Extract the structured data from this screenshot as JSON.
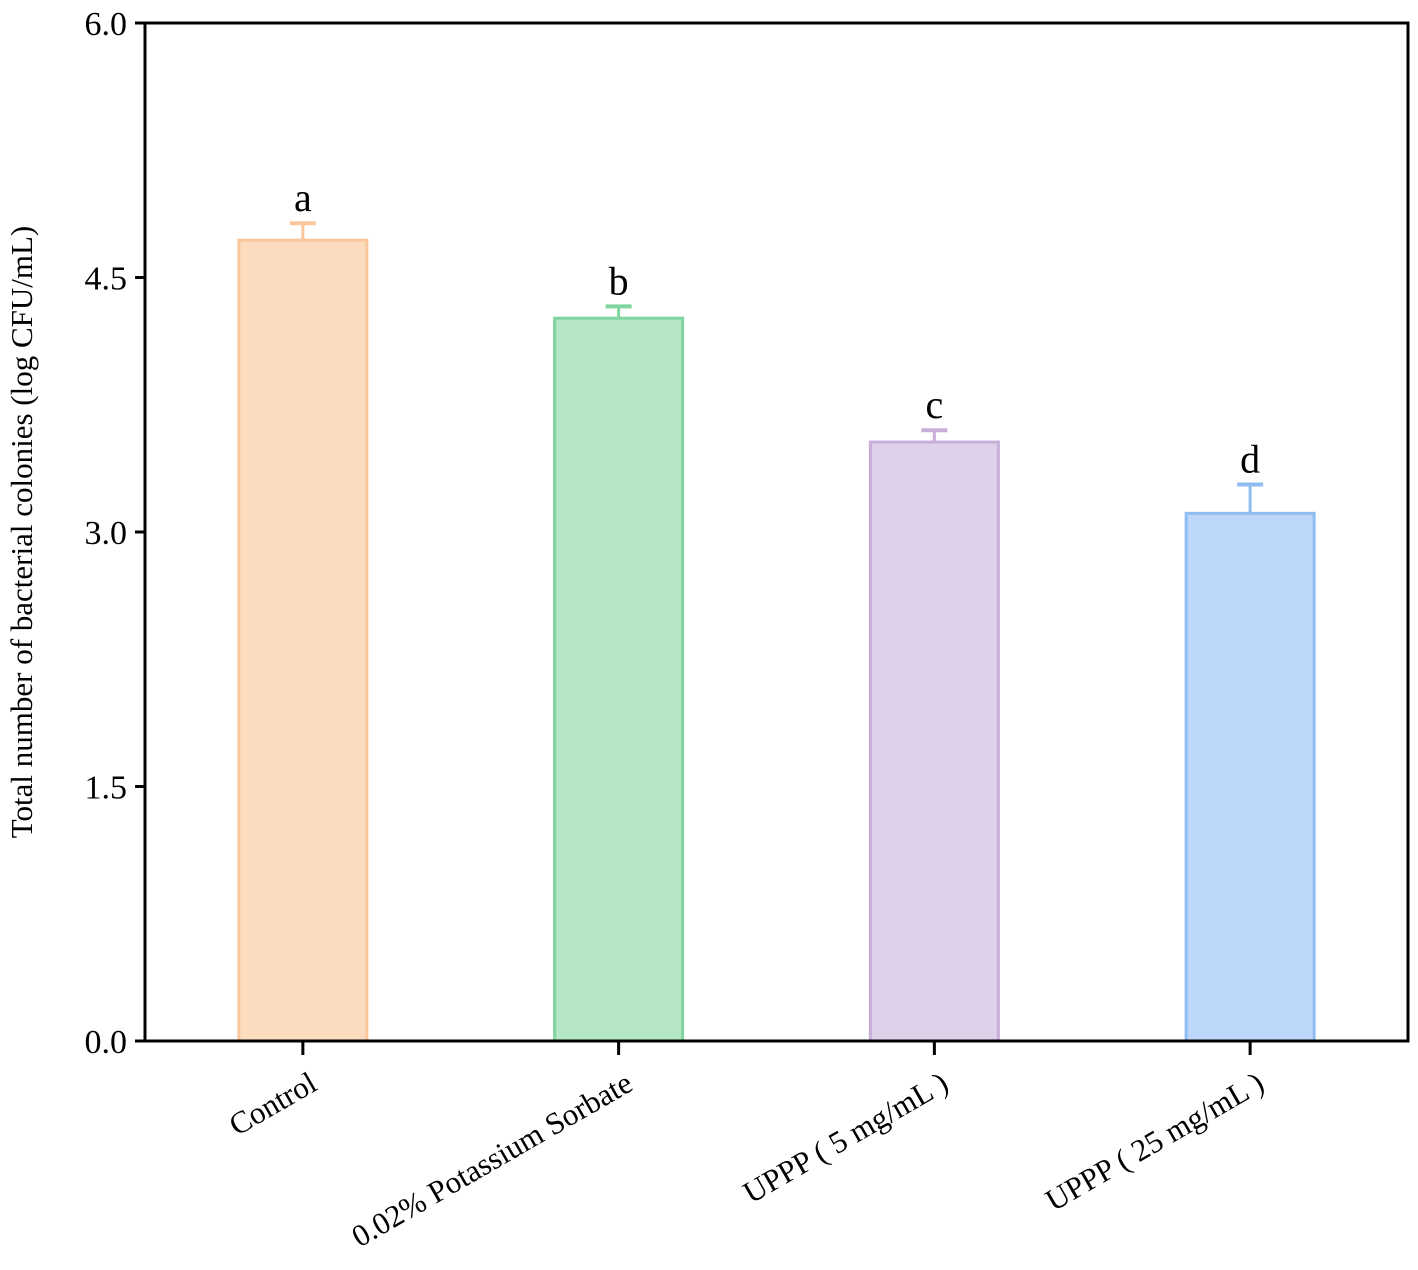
{
  "chart_data": {
    "type": "bar",
    "title": "",
    "xlabel": "",
    "ylabel": "Total number of bacterial colonies (log CFU/mL)",
    "ylim": [
      0,
      6.0
    ],
    "yticks": [
      "0.0",
      "1.5",
      "3.0",
      "4.5",
      "6.0"
    ],
    "ytick_values": [
      0,
      1.5,
      3.0,
      4.5,
      6.0
    ],
    "categories": [
      "Control",
      "0.02% Potassium Sorbate",
      "UPPP ( 5 mg/mL )",
      "UPPP ( 25 mg/mL )"
    ],
    "values": [
      4.72,
      4.26,
      3.53,
      3.11
    ],
    "errors": [
      0.1,
      0.07,
      0.07,
      0.17
    ],
    "significance_labels": [
      "a",
      "b",
      "c",
      "d"
    ],
    "colors": {
      "fill": [
        "#fcdcbf",
        "#b5e7c6",
        "#dfd1ea",
        "#bdd7fa"
      ],
      "edge": [
        "#f9c79b",
        "#7fd59d",
        "#c8afd9",
        "#8fbcf1"
      ]
    },
    "grid": false,
    "legend": "none"
  }
}
